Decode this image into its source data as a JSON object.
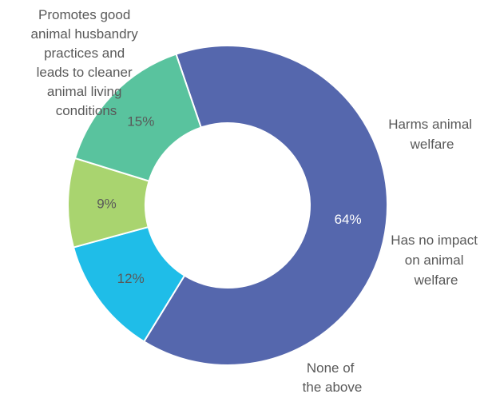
{
  "chart_data": {
    "type": "pie",
    "donut": true,
    "title": "",
    "legend": "none",
    "categories": [
      "Promotes good animal husbandry practices and leads to cleaner animal living conditions",
      "Harms animal welfare",
      "Has no impact on animal welfare",
      "None of the above"
    ],
    "values": [
      64,
      12,
      9,
      15
    ],
    "data_labels": [
      "64%",
      "12%",
      "9%",
      "15%"
    ],
    "colors": [
      "#5567ad",
      "#1fbde8",
      "#a9d46f",
      "#59c39e"
    ],
    "label_colors": [
      "#ffffff",
      "#595959",
      "#595959",
      "#595959"
    ]
  }
}
